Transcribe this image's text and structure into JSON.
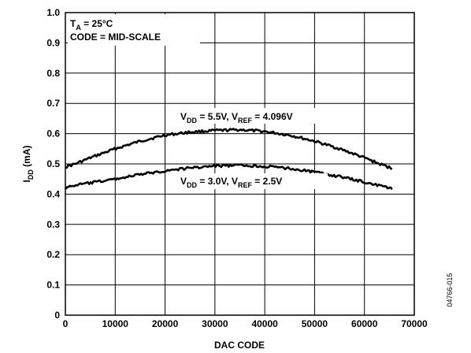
{
  "chart_data": {
    "type": "line",
    "xlabel": "DAC CODE",
    "ylabel": {
      "main": "I",
      "sub": "DD",
      "rest": " (mA)"
    },
    "xlim": [
      0,
      70000
    ],
    "ylim": [
      0,
      1.0
    ],
    "x_ticks": [
      0,
      10000,
      20000,
      30000,
      40000,
      50000,
      60000,
      70000
    ],
    "y_ticks": [
      0,
      0.1,
      0.2,
      0.3,
      0.4,
      0.5,
      0.6,
      0.7,
      0.8,
      0.9,
      1.0
    ],
    "x_tick_labels": [
      "0",
      "10000",
      "20000",
      "30000",
      "40000",
      "50000",
      "60000",
      "70000"
    ],
    "y_tick_labels": [
      "0",
      "0.1",
      "0.2",
      "0.3",
      "0.4",
      "0.5",
      "0.6",
      "0.7",
      "0.8",
      "0.9",
      "1.0"
    ],
    "grid": true,
    "conditions": {
      "line1": {
        "main": "T",
        "sub": "A",
        "rest": " = 25°C"
      },
      "line2": "CODE = MID-SCALE"
    },
    "series": [
      {
        "label_parts": {
          "a": "V",
          "a_sub": "DD",
          "b": " = 5.5V, V",
          "b_sub": "REF",
          "c": " = 4.096V"
        },
        "x": [
          0,
          2000,
          5000,
          10000,
          15000,
          20000,
          25000,
          30000,
          35000,
          40000,
          45000,
          50000,
          55000,
          60000,
          63000,
          65535
        ],
        "y": [
          0.49,
          0.5,
          0.52,
          0.55,
          0.575,
          0.595,
          0.605,
          0.61,
          0.613,
          0.607,
          0.595,
          0.575,
          0.55,
          0.52,
          0.5,
          0.485
        ]
      },
      {
        "label_parts": {
          "a": "V",
          "a_sub": "DD",
          "b": " = 3.0V, V",
          "b_sub": "REF",
          "c": " = 2.5V"
        },
        "x": [
          0,
          2000,
          5000,
          10000,
          15000,
          20000,
          25000,
          30000,
          35000,
          40000,
          45000,
          50000,
          55000,
          60000,
          63000,
          65535
        ],
        "y": [
          0.42,
          0.43,
          0.437,
          0.45,
          0.465,
          0.477,
          0.487,
          0.493,
          0.495,
          0.492,
          0.485,
          0.473,
          0.458,
          0.44,
          0.428,
          0.418
        ]
      }
    ],
    "figure_id": "04766-015"
  }
}
